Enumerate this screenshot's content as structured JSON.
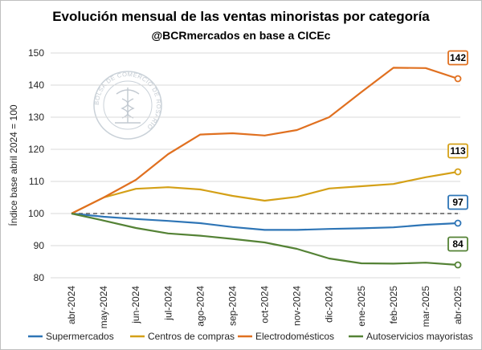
{
  "chart_data": {
    "type": "line",
    "title": "Evolución mensual de las ventas minoristas por categoría",
    "subtitle": "@BCRmercados en base a CICEc",
    "ylabel": "Índice base abril  2024 = 100",
    "xlabel": "",
    "ylim": [
      80,
      150
    ],
    "yticks": [
      80,
      90,
      100,
      110,
      120,
      130,
      140,
      150
    ],
    "categories": [
      "abr-2024",
      "may-2024",
      "jun-2024",
      "jul-2024",
      "ago-2024",
      "sep-2024",
      "oct-2024",
      "nov-2024",
      "dic-2024",
      "ene-2025",
      "feb-2025",
      "mar-2025",
      "abr-2025"
    ],
    "reference_line": 100,
    "grid": true,
    "legend_position": "bottom",
    "series": [
      {
        "name": "Supermercados",
        "color": "#2e75b6",
        "values": [
          100,
          99.0,
          98.3,
          97.7,
          97.0,
          95.8,
          94.9,
          94.9,
          95.2,
          95.4,
          95.7,
          96.5,
          97
        ],
        "end_label": "97"
      },
      {
        "name": "Centros de compras",
        "color": "#d4a017",
        "values": [
          100,
          105.0,
          107.7,
          108.2,
          107.5,
          105.5,
          104.0,
          105.2,
          107.8,
          108.5,
          109.2,
          111.3,
          113
        ],
        "end_label": "113"
      },
      {
        "name": "Electrodomésticos",
        "color": "#e07020",
        "values": [
          100,
          105.0,
          110.5,
          118.5,
          124.6,
          125.0,
          124.3,
          126.0,
          130.0,
          137.8,
          145.4,
          145.3,
          142
        ],
        "end_label": "142"
      },
      {
        "name": "Autoservicios mayoristas",
        "color": "#548235",
        "values": [
          100,
          97.8,
          95.5,
          93.8,
          93.1,
          92.1,
          91.0,
          89.0,
          86.0,
          84.5,
          84.4,
          84.7,
          84
        ],
        "end_label": "84"
      }
    ]
  },
  "watermark": {
    "text": "BOLSA DE COMERCIO DE ROSARIO",
    "icon": "caduceus-seal-icon"
  }
}
